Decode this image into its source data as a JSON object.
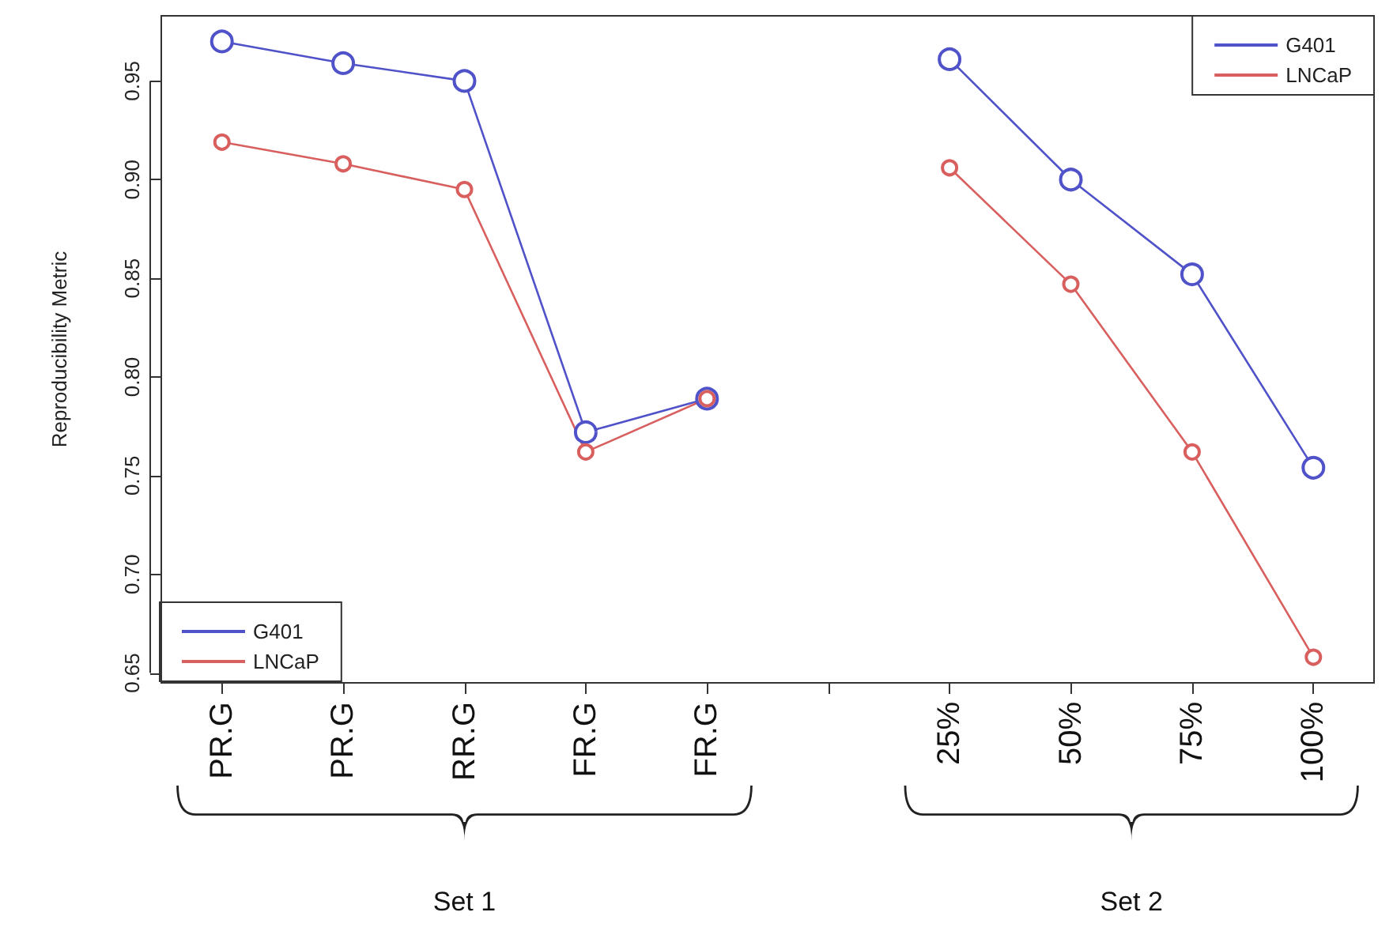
{
  "chart_data": {
    "type": "line",
    "ylabel": "Reproducibility Metric",
    "categories": [
      "PR.G",
      "PR.G",
      "RR.G",
      "FR.G",
      "FR.G",
      null,
      "25%",
      "50%",
      "75%",
      "100%"
    ],
    "series": [
      {
        "name": "G401",
        "color": "#4f52c8",
        "values": [
          0.97,
          0.959,
          0.95,
          0.772,
          0.789,
          null,
          0.961,
          0.9,
          0.852,
          0.754
        ]
      },
      {
        "name": "LNCaP",
        "color": "#d95f5f",
        "values": [
          0.919,
          0.908,
          0.895,
          0.762,
          0.789,
          null,
          0.906,
          0.847,
          0.762,
          0.658
        ]
      }
    ],
    "ylim": [
      0.645,
      0.983
    ],
    "yticks": [
      {
        "value": 0.65,
        "label": "0.65"
      },
      {
        "value": 0.7,
        "label": "0.70"
      },
      {
        "value": 0.75,
        "label": "0.75"
      },
      {
        "value": 0.8,
        "label": "0.80"
      },
      {
        "value": 0.85,
        "label": "0.85"
      },
      {
        "value": 0.9,
        "label": "0.90"
      },
      {
        "value": 0.95,
        "label": "0.95"
      }
    ],
    "marker": "circle",
    "grid": false,
    "legend": [
      "bottom left",
      "top right"
    ],
    "annotations": [
      "Set 1",
      "Set 2"
    ]
  }
}
